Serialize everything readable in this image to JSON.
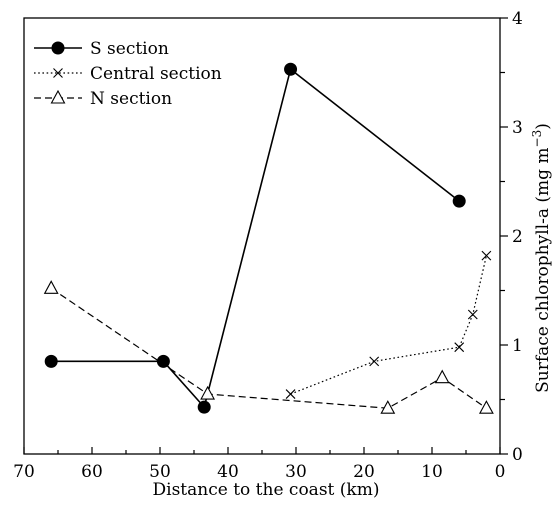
{
  "chart_data": {
    "type": "line",
    "title": "",
    "xlabel": "Distance to the coast (km)",
    "ylabel": "Surface chlorophyll-a (mg m⁻³)",
    "ylabel_main": "Surface chlorophyll-a (mg m",
    "ylabel_exp": "−3",
    "ylabel_close": ")",
    "xlim": [
      70,
      0
    ],
    "ylim": [
      0,
      4
    ],
    "x_ticks": [
      70,
      60,
      50,
      40,
      30,
      20,
      10,
      0
    ],
    "y_ticks": [
      0,
      1,
      2,
      3,
      4
    ],
    "y_axis_side": "right",
    "x_axis_reversed": true,
    "grid": false,
    "legend_position": "top-left",
    "series": [
      {
        "name": "S section",
        "line_style": "solid",
        "marker": "filled-circle",
        "color": "#000000",
        "x": [
          66,
          49.5,
          43.5,
          30.8,
          6
        ],
        "y": [
          0.85,
          0.85,
          0.43,
          3.53,
          2.32
        ]
      },
      {
        "name": "Central section",
        "line_style": "dotted",
        "marker": "cross",
        "color": "#000000",
        "x": [
          30.8,
          18.5,
          6,
          4,
          2
        ],
        "y": [
          0.55,
          0.85,
          0.98,
          1.28,
          1.82
        ]
      },
      {
        "name": "N section",
        "line_style": "dashed",
        "marker": "open-triangle",
        "color": "#000000",
        "x": [
          66,
          43,
          16.5,
          8.5,
          2
        ],
        "y": [
          1.52,
          0.55,
          0.42,
          0.7,
          0.42
        ]
      }
    ]
  }
}
